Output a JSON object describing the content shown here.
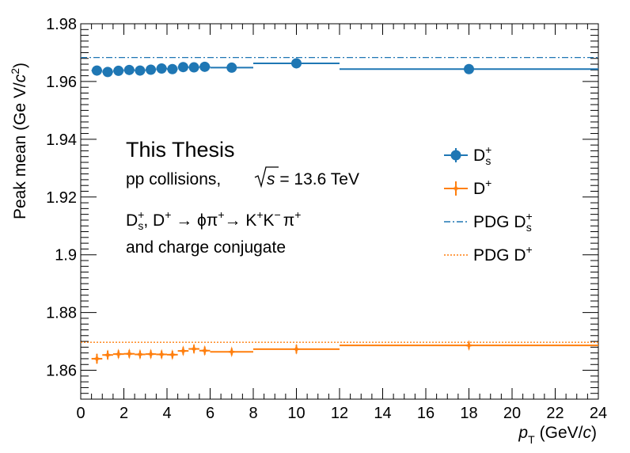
{
  "chart_data": {
    "type": "scatter",
    "xlabel_main": "p",
    "xlabel_sub": "T",
    "xlabel_units": "(GeV/",
    "xlabel_c": "c",
    "xlabel_close": ")",
    "ylabel_main": "Peak mean (Ge V/",
    "ylabel_c": "c",
    "ylabel_exp": "2",
    "ylabel_close": ")",
    "xlim": [
      0,
      24
    ],
    "ylim": [
      1.85,
      1.98
    ],
    "x_ticks": [
      0,
      2,
      4,
      6,
      8,
      10,
      12,
      14,
      16,
      18,
      20,
      22,
      24
    ],
    "x_tick_labels": [
      "0",
      "2",
      "4",
      "6",
      "8",
      "10",
      "12",
      "14",
      "16",
      "18",
      "20",
      "22",
      "24"
    ],
    "y_ticks": [
      1.86,
      1.88,
      1.9,
      1.92,
      1.94,
      1.96,
      1.98
    ],
    "y_tick_labels": [
      "1.86",
      "1.88",
      "1.9",
      "1.92",
      "1.94",
      "1.96",
      "1.98"
    ],
    "series": [
      {
        "name": "Ds+",
        "color": "#1f77b4",
        "marker": "circle",
        "x": [
          0.75,
          1.25,
          1.75,
          2.25,
          2.75,
          3.25,
          3.75,
          4.25,
          4.75,
          5.25,
          5.75,
          7.0,
          10.0,
          18.0
        ],
        "xlow": [
          0.5,
          1.0,
          1.5,
          2.0,
          2.5,
          3.0,
          3.5,
          4.0,
          4.5,
          5.0,
          5.5,
          6.0,
          8.0,
          12.0
        ],
        "xhigh": [
          1.0,
          1.5,
          2.0,
          2.5,
          3.0,
          3.5,
          4.0,
          4.5,
          5.0,
          5.5,
          6.0,
          8.0,
          12.0,
          24.0
        ],
        "y": [
          1.9638,
          1.9633,
          1.9637,
          1.964,
          1.9638,
          1.9641,
          1.9645,
          1.9643,
          1.965,
          1.9649,
          1.9651,
          1.9648,
          1.9663,
          1.9643
        ],
        "yerr": [
          0.001,
          0.0007,
          0.0006,
          0.0005,
          0.0005,
          0.0005,
          0.0005,
          0.0006,
          0.0006,
          0.0007,
          0.0008,
          0.0007,
          0.0015,
          0.0012
        ]
      },
      {
        "name": "D+",
        "color": "#ff7f0e",
        "marker": "star",
        "x": [
          0.75,
          1.25,
          1.75,
          2.25,
          2.75,
          3.25,
          3.75,
          4.25,
          4.75,
          5.25,
          5.75,
          7.0,
          10.0,
          18.0
        ],
        "xlow": [
          0.5,
          1.0,
          1.5,
          2.0,
          2.5,
          3.0,
          3.5,
          4.0,
          4.5,
          5.0,
          5.5,
          6.0,
          8.0,
          12.0
        ],
        "xhigh": [
          1.0,
          1.5,
          2.0,
          2.5,
          3.0,
          3.5,
          4.0,
          4.5,
          5.0,
          5.5,
          6.0,
          8.0,
          12.0,
          24.0
        ],
        "y": [
          1.864,
          1.8653,
          1.8656,
          1.8657,
          1.8655,
          1.8656,
          1.8655,
          1.8654,
          1.8667,
          1.8674,
          1.8668,
          1.8664,
          1.8673,
          1.8686
        ],
        "yerr": [
          0.0017,
          0.0015,
          0.0013,
          0.0013,
          0.0013,
          0.0013,
          0.0013,
          0.0013,
          0.0013,
          0.0014,
          0.0014,
          0.0012,
          0.0015,
          0.0013
        ]
      }
    ],
    "reference_lines": [
      {
        "name": "PDG Ds+",
        "y": 1.9683,
        "color": "#1f77b4",
        "style": "dashdot"
      },
      {
        "name": "PDG D+",
        "y": 1.8697,
        "color": "#ff7f0e",
        "style": "dotted"
      }
    ],
    "annotations": {
      "title": "This Thesis",
      "line1_a": "pp collisions,",
      "line1_s": "s",
      "line1_b": " = 13.6 TeV",
      "decay_ds": "D",
      "decay_ds_sub": "s",
      "decay_ds_sup": "+",
      "decay_mid": ", D",
      "decay_mid_sup": "+",
      "decay_arrow1": " → ϕπ",
      "decay_pi_sup": "+",
      "decay_arrow2": "→ K",
      "decay_k1_sup": "+",
      "decay_k2": "K",
      "decay_k2_sup": "−",
      "decay_pi2": "π",
      "decay_pi2_sup": "+",
      "line3": "and charge conjugate"
    },
    "legend": {
      "position": "right",
      "entries": [
        {
          "label": "D",
          "sub": "s",
          "sup": "+",
          "kind": "circle",
          "color": "#1f77b4"
        },
        {
          "label": "D",
          "sub": "",
          "sup": "+",
          "kind": "star",
          "color": "#ff7f0e"
        },
        {
          "label": "PDG D",
          "sub": "s",
          "sup": "+",
          "kind": "dashdot",
          "color": "#1f77b4"
        },
        {
          "label": "PDG D",
          "sub": "",
          "sup": "+",
          "kind": "dotted",
          "color": "#ff7f0e"
        }
      ]
    }
  }
}
